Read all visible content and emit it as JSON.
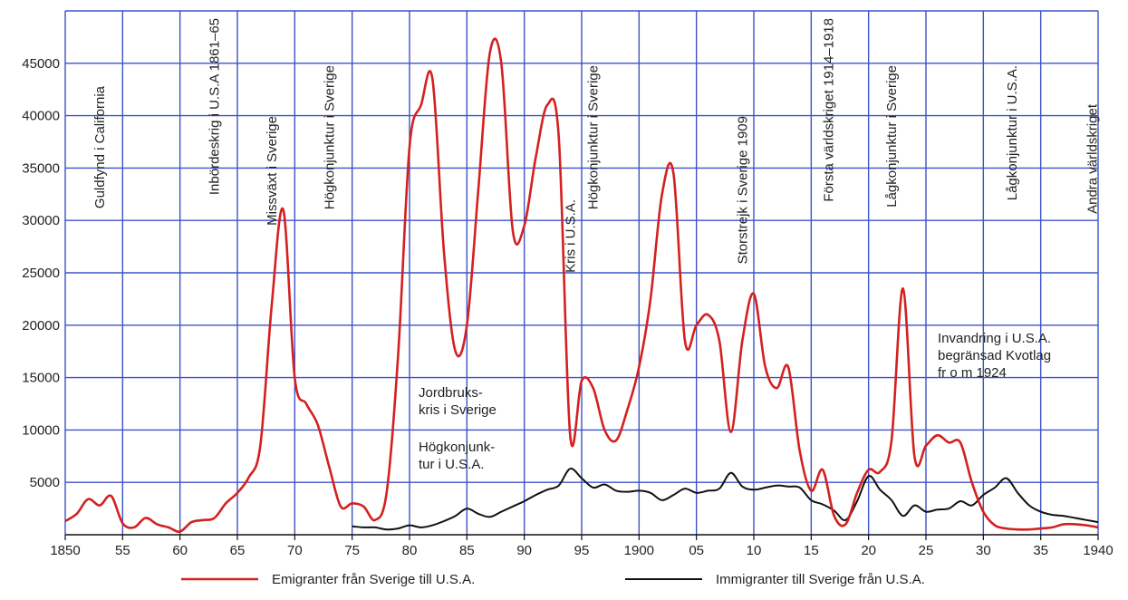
{
  "chart_data": {
    "type": "line",
    "title": "",
    "xlabel": "",
    "ylabel": "",
    "xlim": [
      1850,
      1940
    ],
    "ylim": [
      0,
      50000
    ],
    "grid": true,
    "legend_position": "bottom",
    "x_ticks": [
      {
        "value": 1850,
        "label": "1850"
      },
      {
        "value": 1855,
        "label": "55"
      },
      {
        "value": 1860,
        "label": "60"
      },
      {
        "value": 1865,
        "label": "65"
      },
      {
        "value": 1870,
        "label": "70"
      },
      {
        "value": 1875,
        "label": "75"
      },
      {
        "value": 1880,
        "label": "80"
      },
      {
        "value": 1885,
        "label": "85"
      },
      {
        "value": 1890,
        "label": "90"
      },
      {
        "value": 1895,
        "label": "95"
      },
      {
        "value": 1900,
        "label": "1900"
      },
      {
        "value": 1905,
        "label": "05"
      },
      {
        "value": 1910,
        "label": "10"
      },
      {
        "value": 1915,
        "label": "15"
      },
      {
        "value": 1920,
        "label": "20"
      },
      {
        "value": 1925,
        "label": "25"
      },
      {
        "value": 1930,
        "label": "30"
      },
      {
        "value": 1935,
        "label": "35"
      },
      {
        "value": 1940,
        "label": "1940"
      }
    ],
    "y_ticks": [
      5000,
      10000,
      15000,
      20000,
      25000,
      30000,
      35000,
      40000,
      45000
    ],
    "series": [
      {
        "name": "Emigranter från Sverige till U.S.A.",
        "color": "#d42020",
        "points": [
          [
            1850,
            1300
          ],
          [
            1851,
            2000
          ],
          [
            1852,
            3400
          ],
          [
            1853,
            2800
          ],
          [
            1854,
            3700
          ],
          [
            1855,
            1100
          ],
          [
            1856,
            700
          ],
          [
            1857,
            1600
          ],
          [
            1858,
            1000
          ],
          [
            1859,
            700
          ],
          [
            1860,
            300
          ],
          [
            1861,
            1200
          ],
          [
            1862,
            1400
          ],
          [
            1863,
            1600
          ],
          [
            1864,
            3000
          ],
          [
            1865,
            4000
          ],
          [
            1866,
            5500
          ],
          [
            1867,
            8500
          ],
          [
            1868,
            22000
          ],
          [
            1869,
            31000
          ],
          [
            1870,
            15000
          ],
          [
            1871,
            12500
          ],
          [
            1872,
            10500
          ],
          [
            1873,
            6500
          ],
          [
            1874,
            2700
          ],
          [
            1875,
            3000
          ],
          [
            1876,
            2700
          ],
          [
            1877,
            1400
          ],
          [
            1878,
            4000
          ],
          [
            1879,
            17000
          ],
          [
            1880,
            37000
          ],
          [
            1881,
            41000
          ],
          [
            1882,
            43500
          ],
          [
            1883,
            27000
          ],
          [
            1884,
            17500
          ],
          [
            1885,
            20000
          ],
          [
            1886,
            33000
          ],
          [
            1887,
            46000
          ],
          [
            1888,
            45000
          ],
          [
            1889,
            29000
          ],
          [
            1890,
            29500
          ],
          [
            1891,
            36000
          ],
          [
            1892,
            41000
          ],
          [
            1893,
            38000
          ],
          [
            1894,
            9500
          ],
          [
            1895,
            14700
          ],
          [
            1896,
            14000
          ],
          [
            1897,
            10000
          ],
          [
            1898,
            9000
          ],
          [
            1899,
            12000
          ],
          [
            1900,
            16000
          ],
          [
            1901,
            22500
          ],
          [
            1902,
            32500
          ],
          [
            1903,
            34500
          ],
          [
            1904,
            18500
          ],
          [
            1905,
            20000
          ],
          [
            1906,
            21000
          ],
          [
            1907,
            18500
          ],
          [
            1908,
            9800
          ],
          [
            1909,
            18500
          ],
          [
            1910,
            23000
          ],
          [
            1911,
            16000
          ],
          [
            1912,
            14000
          ],
          [
            1913,
            16000
          ],
          [
            1914,
            8000
          ],
          [
            1915,
            4200
          ],
          [
            1916,
            6200
          ],
          [
            1917,
            1800
          ],
          [
            1918,
            1000
          ],
          [
            1919,
            4000
          ],
          [
            1920,
            6200
          ],
          [
            1921,
            6000
          ],
          [
            1922,
            9000
          ],
          [
            1923,
            23500
          ],
          [
            1924,
            7500
          ],
          [
            1925,
            8500
          ],
          [
            1926,
            9500
          ],
          [
            1927,
            8800
          ],
          [
            1928,
            8800
          ],
          [
            1929,
            5000
          ],
          [
            1930,
            2200
          ],
          [
            1931,
            900
          ],
          [
            1932,
            600
          ],
          [
            1933,
            500
          ],
          [
            1934,
            500
          ],
          [
            1935,
            600
          ],
          [
            1936,
            700
          ],
          [
            1937,
            1000
          ],
          [
            1938,
            1000
          ],
          [
            1939,
            900
          ],
          [
            1940,
            700
          ]
        ]
      },
      {
        "name": "Immigranter till Sverige från U.S.A.",
        "color": "#111111",
        "points": [
          [
            1875,
            800
          ],
          [
            1876,
            700
          ],
          [
            1877,
            700
          ],
          [
            1878,
            500
          ],
          [
            1879,
            600
          ],
          [
            1880,
            900
          ],
          [
            1881,
            700
          ],
          [
            1882,
            900
          ],
          [
            1883,
            1300
          ],
          [
            1884,
            1800
          ],
          [
            1885,
            2500
          ],
          [
            1886,
            2000
          ],
          [
            1887,
            1700
          ],
          [
            1888,
            2200
          ],
          [
            1889,
            2700
          ],
          [
            1890,
            3200
          ],
          [
            1891,
            3800
          ],
          [
            1892,
            4300
          ],
          [
            1893,
            4700
          ],
          [
            1894,
            6300
          ],
          [
            1895,
            5400
          ],
          [
            1896,
            4500
          ],
          [
            1897,
            4800
          ],
          [
            1898,
            4200
          ],
          [
            1899,
            4100
          ],
          [
            1900,
            4200
          ],
          [
            1901,
            4000
          ],
          [
            1902,
            3300
          ],
          [
            1903,
            3800
          ],
          [
            1904,
            4400
          ],
          [
            1905,
            4000
          ],
          [
            1906,
            4200
          ],
          [
            1907,
            4400
          ],
          [
            1908,
            5900
          ],
          [
            1909,
            4600
          ],
          [
            1910,
            4300
          ],
          [
            1911,
            4500
          ],
          [
            1912,
            4700
          ],
          [
            1913,
            4600
          ],
          [
            1914,
            4500
          ],
          [
            1915,
            3300
          ],
          [
            1916,
            2900
          ],
          [
            1917,
            2300
          ],
          [
            1918,
            1400
          ],
          [
            1919,
            3200
          ],
          [
            1920,
            5600
          ],
          [
            1921,
            4300
          ],
          [
            1922,
            3300
          ],
          [
            1923,
            1800
          ],
          [
            1924,
            2800
          ],
          [
            1925,
            2200
          ],
          [
            1926,
            2400
          ],
          [
            1927,
            2500
          ],
          [
            1928,
            3200
          ],
          [
            1929,
            2800
          ],
          [
            1930,
            3800
          ],
          [
            1931,
            4500
          ],
          [
            1932,
            5400
          ],
          [
            1933,
            4000
          ],
          [
            1934,
            2800
          ],
          [
            1935,
            2200
          ],
          [
            1936,
            1900
          ],
          [
            1937,
            1800
          ],
          [
            1938,
            1600
          ],
          [
            1939,
            1400
          ],
          [
            1940,
            1200
          ]
        ]
      }
    ],
    "event_labels": [
      {
        "x": 1853,
        "text": "Guldfynd i California"
      },
      {
        "x": 1863,
        "text": "Inbördeskrig i U.S.A 1861–65"
      },
      {
        "x": 1868,
        "text": "Missväxt i Sverige"
      },
      {
        "x": 1873,
        "text": "Högkonjunktur i Sverige"
      },
      {
        "x": 1894,
        "text": "Kris i U.S.A."
      },
      {
        "x": 1896,
        "text": "Högkonjunktur i Sverige"
      },
      {
        "x": 1909,
        "text": "Storstrejk i Sverige 1909"
      },
      {
        "x": 1916.5,
        "text": "Första världskriget 1914–1918"
      },
      {
        "x": 1922,
        "text": "Lågkonjunktur i Sverige"
      },
      {
        "x": 1932.5,
        "text": "Lågkonjunktur i U.S.A."
      },
      {
        "x": 1939.5,
        "text": "Andra världskriget"
      }
    ],
    "notes": [
      {
        "lines": [
          "Jordbruks-",
          "kris i Sverige"
        ]
      },
      {
        "lines": [
          "Högkonjunk-",
          "tur i U.S.A."
        ]
      },
      {
        "lines": [
          "Invandring i U.S.A.",
          "begränsad Kvotlag",
          "fr o m 1924"
        ]
      }
    ],
    "legend": [
      {
        "label": "Emigranter från Sverige till U.S.A.",
        "color": "#d42020"
      },
      {
        "label": "Immigranter till Sverige från U.S.A.",
        "color": "#111111"
      }
    ]
  }
}
